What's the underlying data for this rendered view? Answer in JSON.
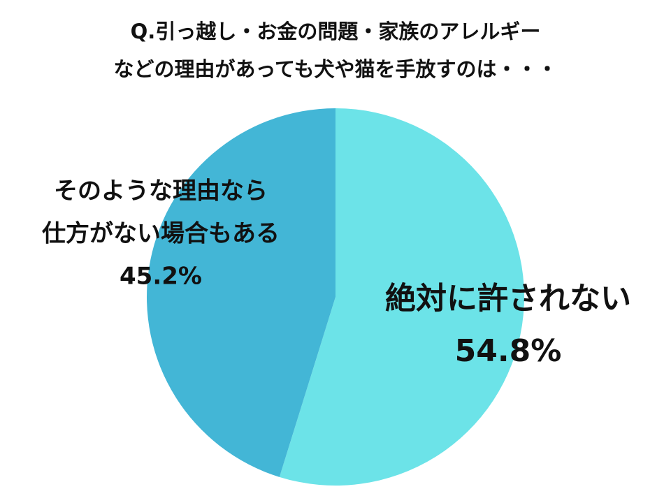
{
  "chart_data": {
    "type": "pie",
    "title": [
      "Q.引っ越し・お金の問題・家族のアレルギー",
      "などの理由があっても犬や猫を手放すのは・・・"
    ],
    "categories": [
      [
        "絶対に許されない"
      ],
      [
        "そのような理由なら",
        "仕方がない場合もある"
      ]
    ],
    "values": [
      54.8,
      45.2
    ],
    "value_labels": [
      "54.8%",
      "45.2%"
    ],
    "colors": [
      "#6ce3e8",
      "#43b6d6"
    ]
  }
}
